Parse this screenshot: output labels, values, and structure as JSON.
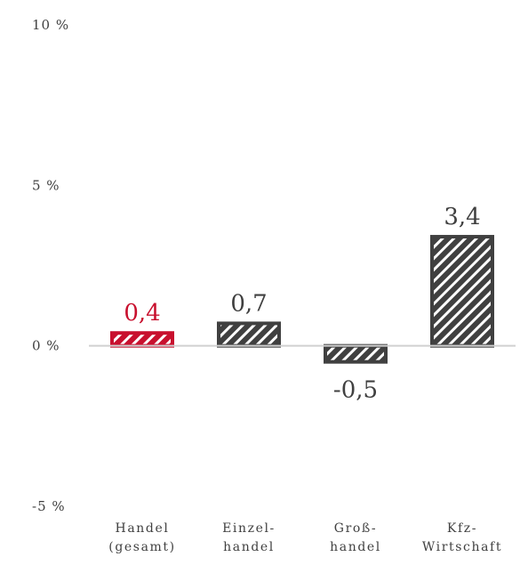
{
  "chart_data": {
    "type": "bar",
    "categories": [
      [
        "Handel",
        "(gesamt)"
      ],
      [
        "Einzel-",
        "handel"
      ],
      [
        "Groß-",
        "handel"
      ],
      [
        "Kfz-",
        "Wirtschaft"
      ]
    ],
    "values": [
      0.4,
      0.7,
      -0.5,
      3.4
    ],
    "value_labels": [
      "0,4",
      "0,7",
      "-0,5",
      "3,4"
    ],
    "ylim": [
      -5,
      10
    ],
    "yticks": [
      {
        "value": 10,
        "label": "10 %"
      },
      {
        "value": 5,
        "label": "5 %"
      },
      {
        "value": 0,
        "label": "0 %"
      },
      {
        "value": -5,
        "label": "-5 %"
      }
    ],
    "bar_fill": "hatched",
    "colors": {
      "highlight": "#c8102e",
      "default": "#404040",
      "zero_line": "#d0d0d0"
    },
    "highlighted_index": 0,
    "grid": false,
    "legend": "none"
  }
}
